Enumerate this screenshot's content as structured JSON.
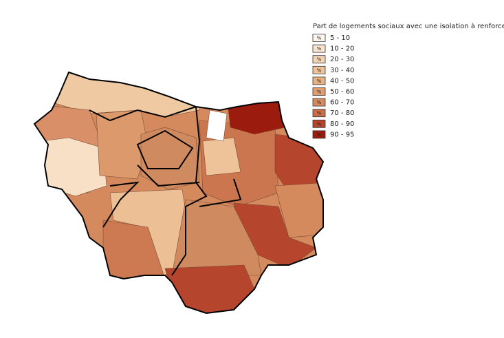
{
  "legend": {
    "title": "Part de logements sociaux avec une isolation à renforcer",
    "swatch_text": "%",
    "items": [
      {
        "label": "5 - 10",
        "color": "#fdf6ef"
      },
      {
        "label": "10 - 20",
        "color": "#f8e4d0"
      },
      {
        "label": "20 - 30",
        "color": "#f3d3b5"
      },
      {
        "label": "30 - 40",
        "color": "#eec39a"
      },
      {
        "label": "40 - 50",
        "color": "#e8b283"
      },
      {
        "label": "50 - 60",
        "color": "#e09e70"
      },
      {
        "label": "60 - 70",
        "color": "#d58a5e"
      },
      {
        "label": "70 - 80",
        "color": "#c86f49"
      },
      {
        "label": "80 - 90",
        "color": "#b5452d"
      },
      {
        "label": "90 - 95",
        "color": "#9b1b0e"
      }
    ]
  }
}
